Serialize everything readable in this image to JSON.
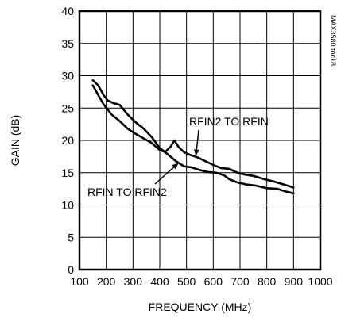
{
  "chart_data": {
    "type": "line",
    "title": "",
    "xlabel": "FREQUENCY (MHz)",
    "ylabel": "GAIN (dB)",
    "xlim": [
      100,
      1000
    ],
    "ylim": [
      0,
      40
    ],
    "x_ticks": [
      "100",
      "200",
      "300",
      "400",
      "500",
      "600",
      "700",
      "800",
      "900",
      "1000"
    ],
    "y_ticks": [
      "0",
      "5",
      "10",
      "15",
      "20",
      "25",
      "30",
      "35",
      "40"
    ],
    "grid": true,
    "watermark": "MAX3580 toc18",
    "series": [
      {
        "name": "RFIN2 TO RFIN",
        "x": [
          150,
          170,
          190,
          205,
          225,
          250,
          280,
          310,
          340,
          370,
          400,
          420,
          440,
          455,
          470,
          490,
          510,
          540,
          570,
          600,
          630,
          660,
          690,
          720,
          750,
          790,
          830,
          870,
          900
        ],
        "y": [
          29.3,
          28.5,
          27.0,
          26.2,
          25.8,
          25.5,
          24.0,
          22.8,
          21.8,
          20.5,
          18.8,
          18.2,
          19.0,
          20.0,
          19.0,
          18.2,
          17.8,
          17.4,
          16.8,
          16.2,
          15.7,
          15.6,
          15.0,
          14.7,
          14.5,
          14.0,
          13.6,
          13.1,
          12.7
        ]
      },
      {
        "name": "RFIN TO RFIN2",
        "x": [
          150,
          170,
          190,
          220,
          250,
          280,
          310,
          340,
          370,
          400,
          420,
          440,
          460,
          490,
          520,
          550,
          580,
          610,
          640,
          660,
          690,
          720,
          760,
          800,
          840,
          870,
          900
        ],
        "y": [
          28.5,
          27.0,
          25.6,
          24.0,
          23.0,
          21.8,
          21.0,
          20.3,
          19.6,
          18.5,
          18.2,
          17.5,
          16.8,
          16.0,
          15.8,
          15.4,
          15.1,
          15.0,
          14.6,
          14.0,
          13.5,
          13.2,
          13.0,
          12.6,
          12.5,
          12.1,
          11.8
        ]
      }
    ],
    "annotations": [
      {
        "text": "RFIN2 TO RFIN",
        "series": 0
      },
      {
        "text": "RFIN TO RFIN2",
        "series": 1
      }
    ]
  }
}
